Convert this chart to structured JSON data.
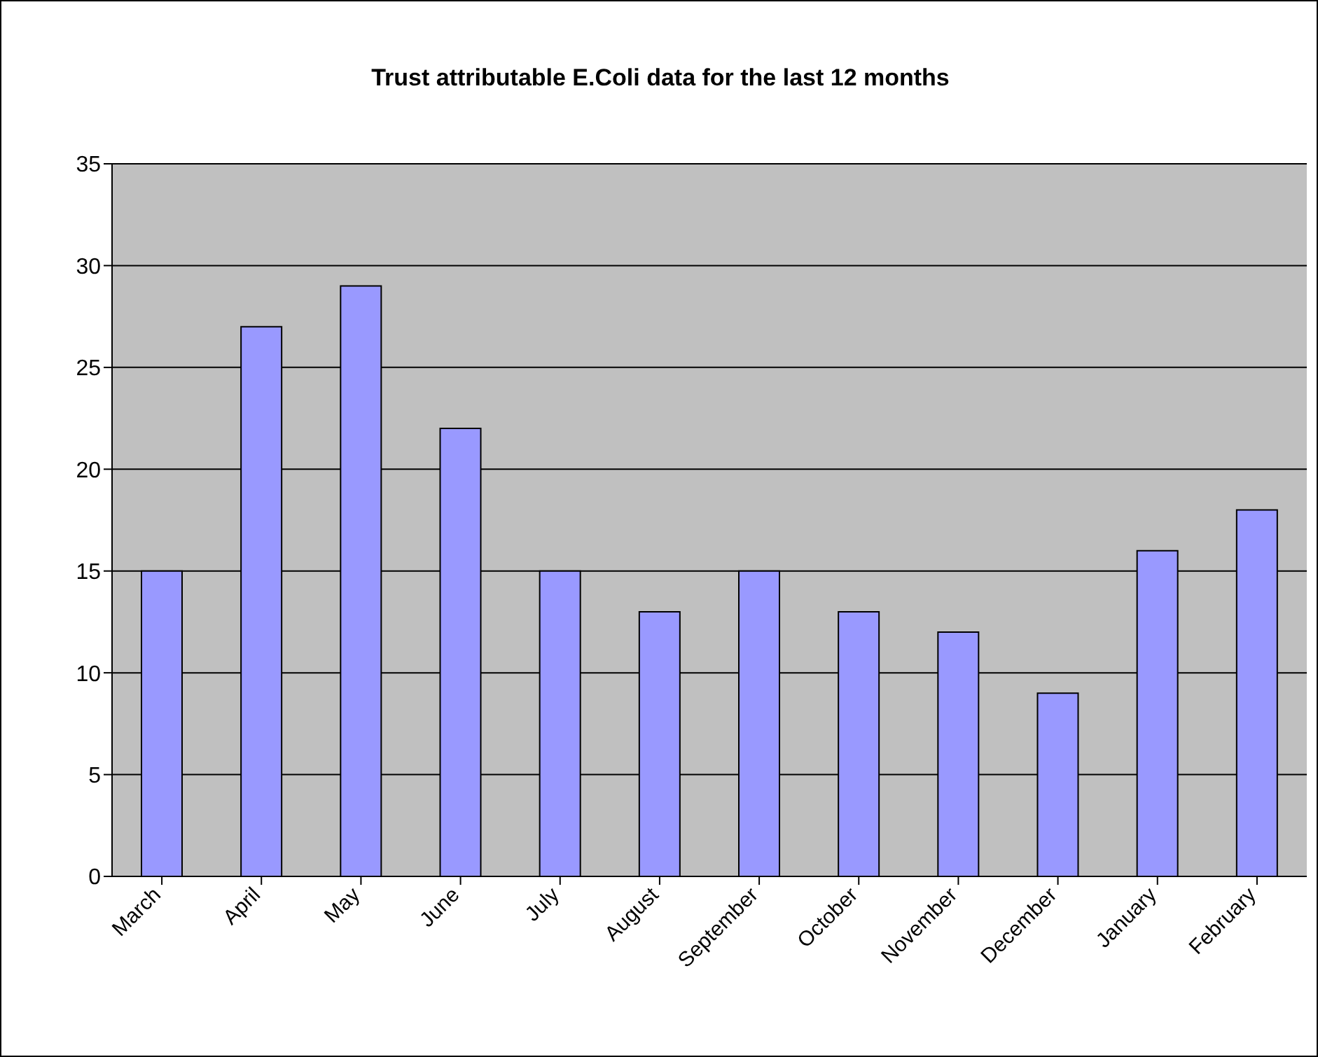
{
  "chart_data": {
    "type": "bar",
    "title": "Trust attributable E.Coli data for the last 12 months",
    "categories": [
      "March",
      "April",
      "May",
      "June",
      "July",
      "August",
      "September",
      "October",
      "November",
      "December",
      "January",
      "February"
    ],
    "values": [
      15,
      27,
      29,
      22,
      15,
      13,
      15,
      13,
      12,
      9,
      16,
      18
    ],
    "color": "#9999ff",
    "ylim": [
      0,
      35
    ],
    "yticks": [
      0,
      5,
      10,
      15,
      20,
      25,
      30,
      35
    ],
    "grid": "y",
    "legend": false
  }
}
